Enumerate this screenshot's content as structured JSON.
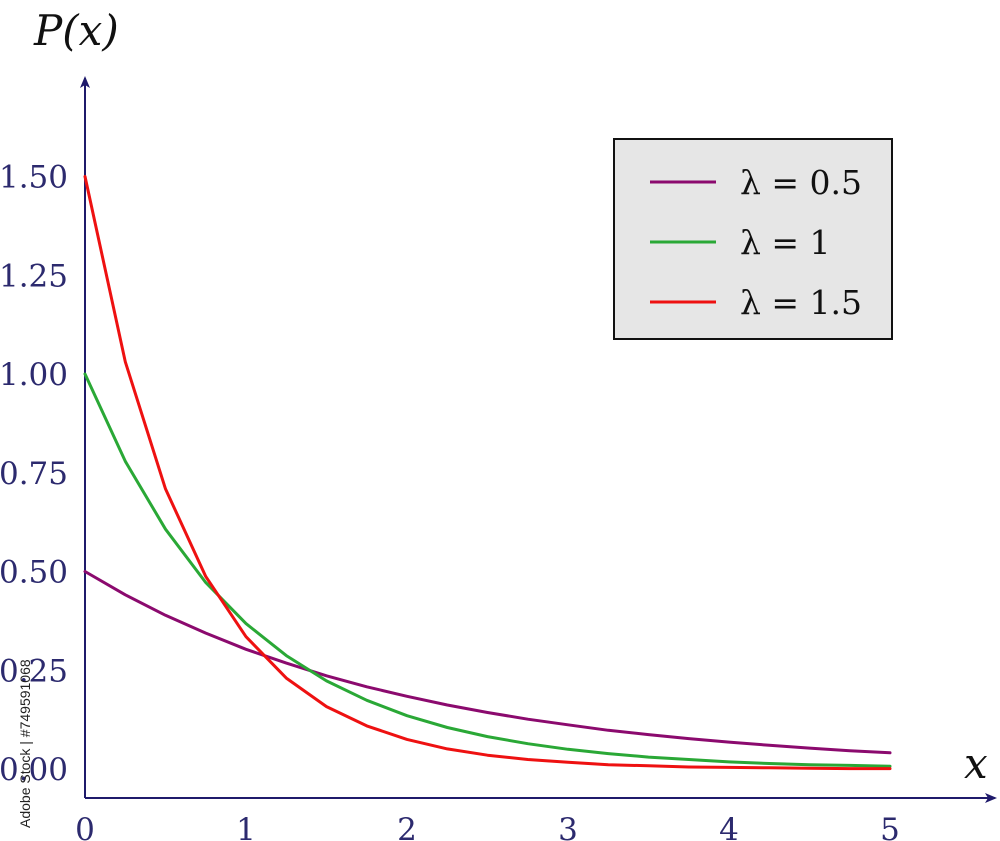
{
  "chart_data": {
    "type": "line",
    "title": "",
    "xlabel": "x",
    "ylabel": "P(x)",
    "xlim": [
      0,
      5
    ],
    "ylim": [
      -0.07,
      1.75
    ],
    "x_ticks": [
      "0",
      "1",
      "2",
      "3",
      "4",
      "5"
    ],
    "y_ticks": [
      "0.00",
      "0.25",
      "0.50",
      "0.75",
      "1.00",
      "1.25",
      "1.50"
    ],
    "x": [
      0,
      0.25,
      0.5,
      0.75,
      1,
      1.25,
      1.5,
      1.75,
      2,
      2.25,
      2.5,
      2.75,
      3,
      3.25,
      3.5,
      3.75,
      4,
      4.25,
      4.5,
      4.75,
      5
    ],
    "series": [
      {
        "name": "λ = 0.5",
        "color": "#8b0a6e",
        "values": [
          0.5,
          0.441,
          0.389,
          0.344,
          0.303,
          0.268,
          0.236,
          0.208,
          0.184,
          0.162,
          0.143,
          0.126,
          0.112,
          0.098,
          0.087,
          0.077,
          0.068,
          0.06,
          0.053,
          0.046,
          0.041
        ]
      },
      {
        "name": "λ = 1",
        "color": "#2aa836",
        "values": [
          1.0,
          0.779,
          0.607,
          0.472,
          0.368,
          0.287,
          0.223,
          0.174,
          0.135,
          0.105,
          0.082,
          0.064,
          0.05,
          0.039,
          0.03,
          0.024,
          0.018,
          0.014,
          0.011,
          0.009,
          0.007
        ]
      },
      {
        "name": "λ = 1.5",
        "color": "#ee1111",
        "values": [
          1.5,
          1.031,
          0.709,
          0.487,
          0.335,
          0.23,
          0.158,
          0.109,
          0.075,
          0.051,
          0.035,
          0.024,
          0.017,
          0.011,
          0.008,
          0.005,
          0.004,
          0.003,
          0.002,
          0.001,
          0.001
        ]
      }
    ],
    "legend": {
      "position": "top-right",
      "entries": [
        "λ = 0.5",
        "λ = 1",
        "λ = 1.5"
      ],
      "background": "#e6e6e6"
    },
    "axis_color": "#1f1a6b",
    "grid": false
  },
  "watermark": "Adobe Stock | #749591068"
}
